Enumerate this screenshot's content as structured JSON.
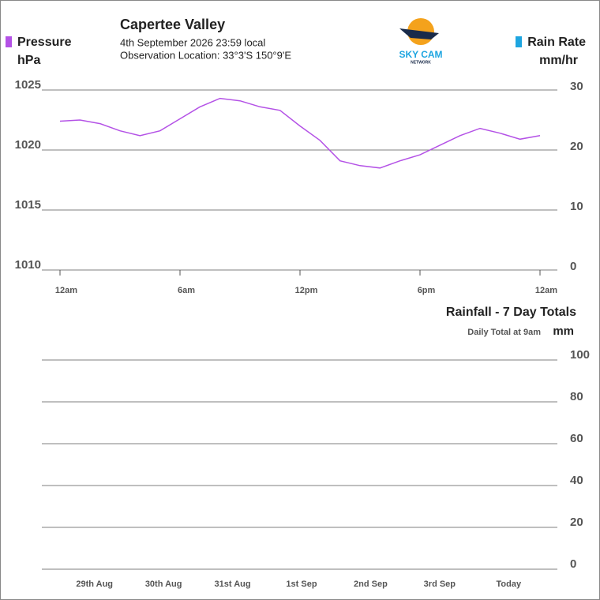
{
  "header": {
    "station": "Capertee Valley",
    "datetime": "4th September 2026  23:59 local",
    "location": "Observation Location: 33°3'S 150°9'E",
    "logo_title": "SKY CAM",
    "logo_subtitle": "NETWORK"
  },
  "chart_data": [
    {
      "type": "line",
      "y_label": "Pressure",
      "y_unit": "hPa",
      "y_color": "#b452e6",
      "y2_label": "Rain Rate",
      "y2_unit": "mm/hr",
      "y2_color": "#1ea5e0",
      "x": [
        0,
        1,
        2,
        3,
        4,
        5,
        6,
        7,
        8,
        9,
        10,
        11,
        12,
        13,
        14,
        15,
        16,
        17,
        18,
        19,
        20,
        21,
        22,
        23,
        24
      ],
      "xlim": [
        0,
        24
      ],
      "xticks": [
        {
          "value": 0,
          "label": "12am"
        },
        {
          "value": 6,
          "label": "6am"
        },
        {
          "value": 12,
          "label": "12pm"
        },
        {
          "value": 18,
          "label": "6pm"
        },
        {
          "value": 24,
          "label": "12am"
        }
      ],
      "series": [
        {
          "name": "Pressure",
          "color": "#b452e6",
          "values": [
            1022.4,
            1022.5,
            1022.2,
            1021.6,
            1021.2,
            1021.6,
            1022.6,
            1023.6,
            1024.3,
            1024.1,
            1023.6,
            1023.3,
            1022.0,
            1020.8,
            1019.1,
            1018.7,
            1018.5,
            1019.1,
            1019.6,
            1020.4,
            1021.2,
            1021.8,
            1021.4,
            1020.9,
            1021.2
          ]
        }
      ],
      "ylim": [
        1010,
        1025
      ],
      "yticks": [
        1010,
        1015,
        1020,
        1025
      ],
      "y2lim": [
        0,
        30
      ],
      "y2ticks": [
        0,
        10,
        20,
        30
      ],
      "grid": true
    },
    {
      "type": "bar",
      "title": "Rainfall - 7 Day Totals",
      "subtitle": "Daily Total at 9am",
      "y_unit": "mm",
      "categories": [
        "29th Aug",
        "30th Aug",
        "31st Aug",
        "1st Sep",
        "2nd Sep",
        "3rd Sep",
        "Today"
      ],
      "values": [
        0,
        0,
        0,
        0,
        0,
        0,
        0
      ],
      "color": "#1ea5e0",
      "ylim": [
        0,
        100
      ],
      "yticks": [
        0,
        20,
        40,
        60,
        80,
        100
      ],
      "grid": true
    }
  ]
}
